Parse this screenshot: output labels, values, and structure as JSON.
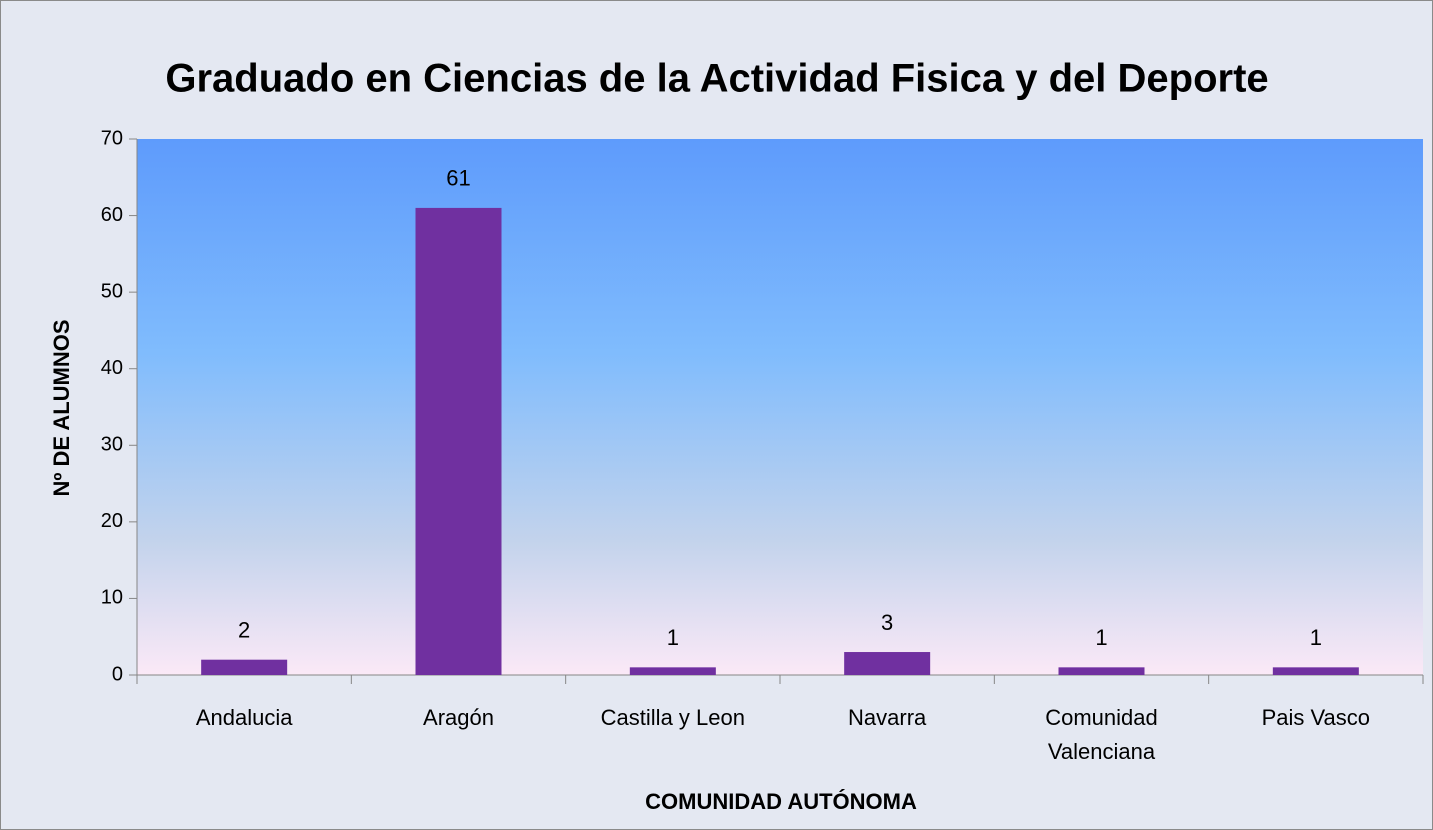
{
  "chart_data": {
    "type": "bar",
    "title": "Graduado en Ciencias de la Actividad Fisica y del Deporte",
    "x_label": "COMUNIDAD AUTÓNOMA",
    "y_label": "Nº DE ALUMNOS",
    "categories": [
      "Andalucia",
      "Aragón",
      "Castilla y Leon",
      "Navarra",
      "Comunidad Valenciana",
      "Pais Vasco"
    ],
    "values": [
      2,
      61,
      1,
      3,
      1,
      1
    ],
    "color": "#7030a0",
    "ylim": [
      0,
      70
    ],
    "yticks": [
      0,
      10,
      20,
      30,
      40,
      50,
      60,
      70
    ],
    "grid": false
  }
}
